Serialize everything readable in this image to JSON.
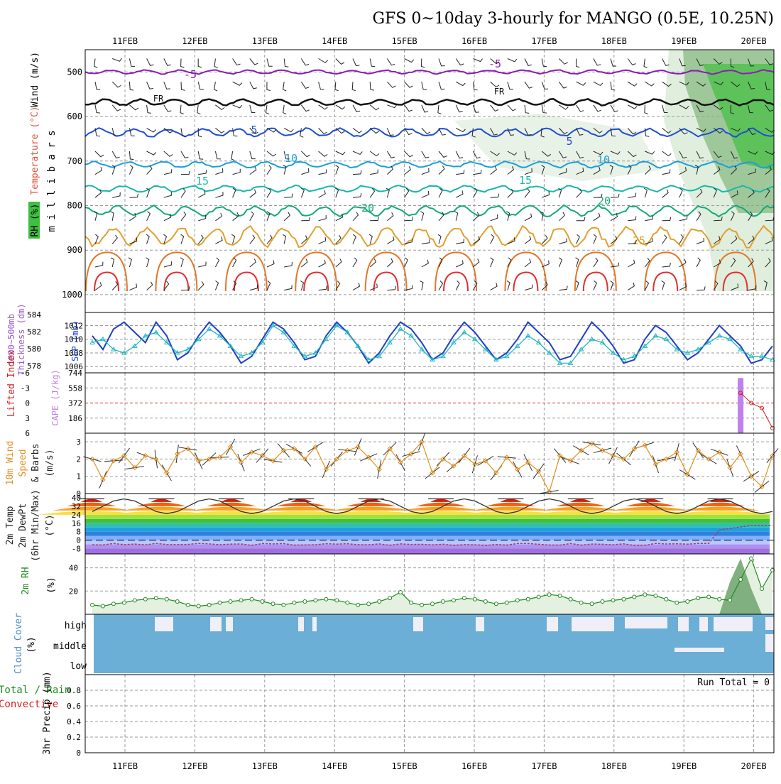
{
  "title": "GFS 0~10day 3-hourly for MANGO (0.5E, 10.25N)",
  "colors": {
    "cloud": "#6baed6",
    "cloud_gap": "#f0eef6",
    "rh": "#1e8c1e",
    "cape": "#c080f0",
    "lifted": "#d02020",
    "slp": "#1f3fc8",
    "thick": "#20b8c0",
    "wind": "#e09020"
  },
  "chart_data": {
    "type": "meteogram",
    "dates": [
      "11FEB",
      "12FEB",
      "13FEB",
      "14FEB",
      "15FEB",
      "16FEB",
      "17FEB",
      "18FEB",
      "19FEB",
      "20FEB"
    ],
    "panels": {
      "upper": {
        "yaxis_label": "millibars",
        "left_labels": [
          "RH (%)",
          "Temperature (°C)",
          "Wind (m/s)"
        ],
        "yticks": [
          500,
          600,
          700,
          800,
          900,
          1000
        ],
        "ylim": [
          450,
          1040
        ],
        "isotherm_labels": [
          "-5",
          "FR",
          "5",
          "10",
          "15",
          "20",
          "25",
          "-5",
          "FR",
          "5",
          "10",
          "15",
          "20",
          "25"
        ],
        "isotherms": [
          {
            "name": "-5",
            "color": "#8a1eb4",
            "base": 500,
            "amp": 4
          },
          {
            "name": "FR",
            "color": "#111111",
            "base": 568,
            "amp": 6
          },
          {
            "name": "5",
            "color": "#1f4fd0",
            "base": 636,
            "amp": 8
          },
          {
            "name": "10",
            "color": "#1c9fd8",
            "base": 708,
            "amp": 6
          },
          {
            "name": "15",
            "color": "#18b8a8",
            "base": 762,
            "amp": 6
          },
          {
            "name": "20",
            "color": "#14a87a",
            "base": 812,
            "amp": 10
          },
          {
            "name": "25",
            "color": "#e0a030",
            "base": 870,
            "amp": 20
          }
        ]
      },
      "slp": {
        "left_labels": [
          "1000~500mb",
          "Thickness (dm)",
          "SLP (mb)"
        ],
        "thick_ticks": [
          "584",
          "582",
          "580",
          "578"
        ],
        "slp_ticks": [
          "1012",
          "1010",
          "1008",
          "1006"
        ],
        "slp_lim": [
          1005.5,
          1013.5
        ],
        "slp": [
          1010.5,
          1008.5,
          1011.5,
          1012.5,
          1011,
          1009.5,
          1012.5,
          1010.5,
          1007,
          1008,
          1010.5,
          1012.5,
          1011,
          1009,
          1006.5,
          1007.5,
          1010,
          1012.5,
          1011.5,
          1009.5,
          1007,
          1007.5,
          1010.5,
          1012.5,
          1011,
          1009,
          1006.5,
          1008,
          1010.5,
          1012.5,
          1011.5,
          1009.5,
          1007,
          1008,
          1010.5,
          1012.5,
          1011,
          1009,
          1007,
          1008,
          1010,
          1012.5,
          1011,
          1009.5,
          1007,
          1007.5,
          1010,
          1012.5,
          1011,
          1009,
          1006.5,
          1007,
          1010,
          1012,
          1011,
          1009,
          1007,
          1008,
          1010,
          1012,
          1010.5,
          1009,
          1006.5,
          1007,
          1009
        ],
        "thick": [
          581,
          581.5,
          580,
          579.5,
          580.5,
          582,
          582.5,
          581,
          579.5,
          580,
          581.5,
          583,
          582,
          580.5,
          579,
          579.5,
          581,
          583.5,
          582.5,
          580.5,
          579,
          579.5,
          581.5,
          583.5,
          582.5,
          580.5,
          578.5,
          579,
          581,
          583,
          582,
          580,
          578.5,
          579,
          581,
          582.5,
          581.5,
          580,
          578.5,
          579,
          580.5,
          582,
          581,
          579.5,
          578,
          578,
          580,
          581.5,
          581,
          579.5,
          578.5,
          579,
          580.5,
          582,
          581.5,
          580,
          579.5,
          580,
          581,
          582,
          581.5,
          580,
          579,
          579,
          578.5
        ]
      },
      "cape": {
        "left_labels": [
          "CAPE (J/kg)",
          "Lifted Index"
        ],
        "li_ticks": [
          "-6",
          "-3",
          "0",
          "3",
          "6"
        ],
        "cape_ticks": [
          "744",
          "558",
          "372",
          "186"
        ],
        "cape_lim": [
          0,
          744
        ],
        "cape": [
          0,
          0,
          0,
          0,
          0,
          0,
          0,
          0,
          0,
          0,
          0,
          0,
          0,
          0,
          0,
          0,
          0,
          0,
          0,
          0,
          0,
          0,
          0,
          0,
          0,
          0,
          0,
          0,
          0,
          0,
          0,
          0,
          0,
          0,
          0,
          0,
          0,
          0,
          0,
          0,
          0,
          0,
          0,
          0,
          0,
          0,
          0,
          0,
          0,
          0,
          0,
          0,
          0,
          0,
          0,
          0,
          0,
          0,
          0,
          0,
          0,
          680,
          0,
          0,
          0
        ],
        "li_lim": [
          -6,
          6
        ],
        "lifted": [
          null,
          null,
          null,
          null,
          null,
          null,
          null,
          null,
          null,
          null,
          null,
          null,
          null,
          null,
          null,
          null,
          null,
          null,
          null,
          null,
          null,
          null,
          null,
          null,
          null,
          null,
          null,
          null,
          null,
          null,
          null,
          null,
          null,
          null,
          null,
          null,
          null,
          null,
          null,
          null,
          null,
          null,
          null,
          null,
          null,
          null,
          null,
          null,
          null,
          null,
          null,
          null,
          null,
          null,
          null,
          null,
          null,
          null,
          null,
          null,
          null,
          -2,
          0,
          1,
          5
        ]
      },
      "wind10": {
        "left_labels": [
          "10m Wind",
          "Speed",
          "& Barbs",
          "(m/s)"
        ],
        "yticks": [
          "3",
          "2",
          "1",
          "0"
        ],
        "ylim": [
          0,
          3.5
        ],
        "speed": [
          2.0,
          0.8,
          1.9,
          2.2,
          1.5,
          2.2,
          2.0,
          1.2,
          2.3,
          2.6,
          1.9,
          2.0,
          2.1,
          2.7,
          1.8,
          2.4,
          2.2,
          1.9,
          2.5,
          2.6,
          2.0,
          2.7,
          1.4,
          2.0,
          2.5,
          2.7,
          2.1,
          1.4,
          2.6,
          1.8,
          2.3,
          3.0,
          1.2,
          2.0,
          1.6,
          2.2,
          1.7,
          1.9,
          1.2,
          2.1,
          1.4,
          1.8,
          1.3,
          0.1,
          2.2,
          1.9,
          2.5,
          2.9,
          2.5,
          2.2,
          2.0,
          2.6,
          2.8,
          1.7,
          2.0,
          2.4,
          1.1,
          2.5,
          2.0,
          2.4,
          1.5,
          2.3,
          1.0,
          0.4,
          2.2
        ]
      },
      "temp2m": {
        "left_labels": [
          "2m Temp",
          "2m DewPt",
          "(6hr Min/Max)",
          "(°C)"
        ],
        "yticks": [
          "40",
          "32",
          "24",
          "16",
          "8",
          "0",
          "-8"
        ],
        "ylim": [
          -13,
          44
        ],
        "temp_max": 39,
        "temp_min": 25
      },
      "rh2m": {
        "left_labels": [
          "2m RH",
          "(%)"
        ],
        "yticks": [
          "40",
          "20"
        ],
        "ylim": [
          0,
          52
        ],
        "rh": [
          8,
          7,
          9,
          10,
          12,
          13,
          14,
          13,
          11,
          8,
          7,
          8,
          10,
          11,
          12,
          13,
          11,
          9,
          8,
          10,
          11,
          12,
          13,
          12,
          10,
          8,
          9,
          11,
          14,
          19,
          10,
          8,
          9,
          11,
          12,
          14,
          13,
          11,
          9,
          10,
          12,
          13,
          15,
          17,
          16,
          13,
          10,
          9,
          11,
          12,
          13,
          15,
          17,
          16,
          13,
          10,
          11,
          14,
          15,
          13,
          12,
          30,
          48,
          22,
          38
        ]
      },
      "cloud": {
        "left_labels": [
          "Cloud Cover",
          "(%)"
        ],
        "levels": [
          "high",
          "middle",
          "low"
        ]
      },
      "precip": {
        "left_labels": [
          "Total / Rain",
          "Convective",
          "3hr Precip (mm)"
        ],
        "yticks": [
          "0.8",
          "0.6",
          "0.4",
          "0.2",
          "0"
        ],
        "ylim": [
          0,
          1.0
        ],
        "run_total": "Run Total = 0"
      }
    }
  }
}
